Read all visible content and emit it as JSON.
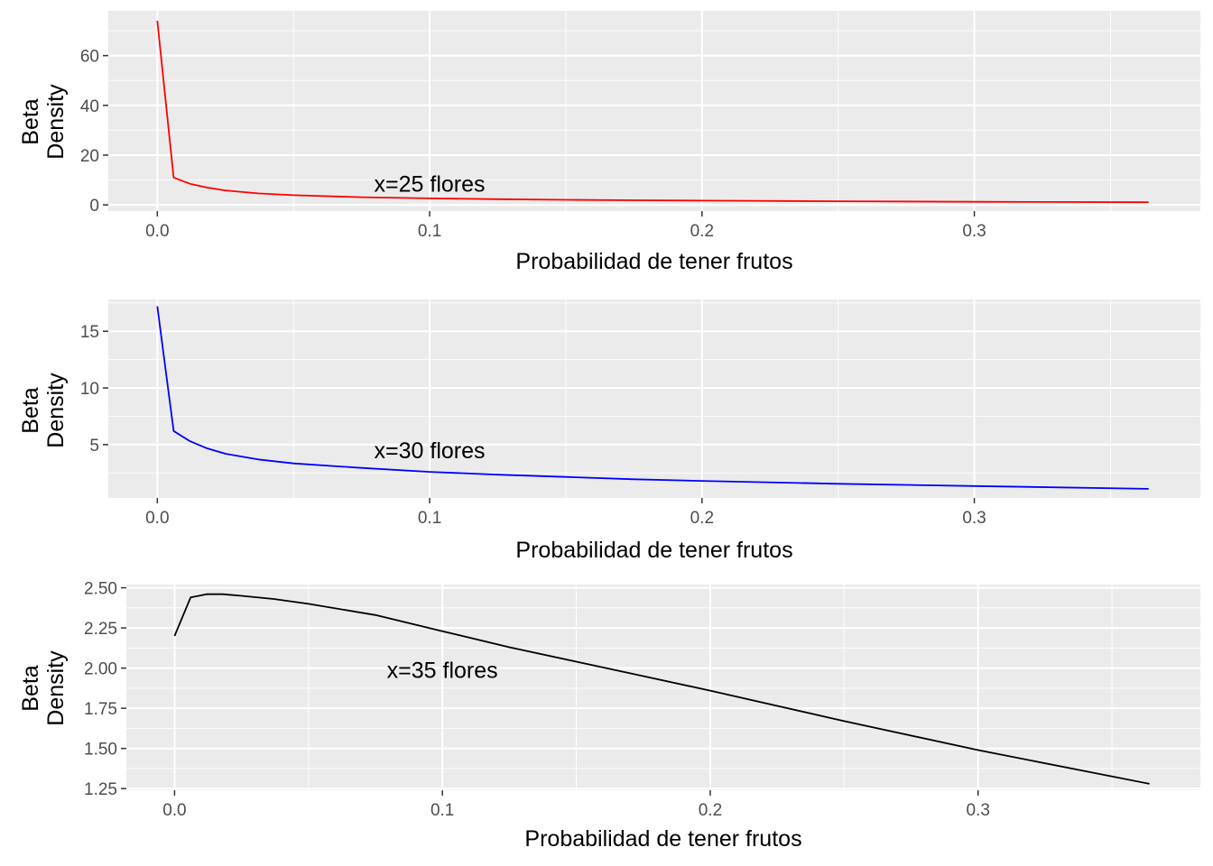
{
  "chart_data": [
    {
      "type": "line",
      "xlabel": "Probabilidad de tener frutos",
      "ylabel_lines": [
        "Beta",
        "Density"
      ],
      "annotation": {
        "text": "x=25 flores",
        "x": 0.1,
        "y": 8.5
      },
      "color": "#FF0000",
      "xlim": [
        -0.018,
        0.383
      ],
      "ylim": [
        -2.5,
        78
      ],
      "x_ticks": [
        0.0,
        0.1,
        0.2,
        0.3
      ],
      "x_tick_labels": [
        "0.0",
        "0.1",
        "0.2",
        "0.3"
      ],
      "y_ticks": [
        0,
        20,
        40,
        60
      ],
      "y_tick_labels": [
        "0",
        "20",
        "40",
        "60"
      ],
      "grid": true,
      "x": [
        0.0,
        0.006,
        0.012,
        0.018,
        0.025,
        0.037,
        0.05,
        0.075,
        0.1,
        0.125,
        0.15,
        0.175,
        0.2,
        0.25,
        0.3,
        0.364
      ],
      "y": [
        74.0,
        11.0,
        8.5,
        7.0,
        5.8,
        4.6,
        3.9,
        3.1,
        2.6,
        2.3,
        2.05,
        1.85,
        1.7,
        1.45,
        1.25,
        1.05
      ]
    },
    {
      "type": "line",
      "xlabel": "Probabilidad de tener frutos",
      "ylabel_lines": [
        "Beta",
        "Density"
      ],
      "annotation": {
        "text": "x=30 flores",
        "x": 0.1,
        "y": 4.5
      },
      "color": "#0000FF",
      "xlim": [
        -0.018,
        0.383
      ],
      "ylim": [
        0.3,
        17.8
      ],
      "x_ticks": [
        0.0,
        0.1,
        0.2,
        0.3
      ],
      "x_tick_labels": [
        "0.0",
        "0.1",
        "0.2",
        "0.3"
      ],
      "y_ticks": [
        5,
        10,
        15
      ],
      "y_tick_labels": [
        "5",
        "10",
        "15"
      ],
      "grid": true,
      "x": [
        0.0,
        0.006,
        0.012,
        0.018,
        0.025,
        0.037,
        0.05,
        0.075,
        0.1,
        0.125,
        0.15,
        0.175,
        0.2,
        0.25,
        0.3,
        0.364
      ],
      "y": [
        17.2,
        6.2,
        5.3,
        4.7,
        4.2,
        3.7,
        3.35,
        2.95,
        2.6,
        2.35,
        2.15,
        1.95,
        1.8,
        1.55,
        1.35,
        1.1
      ]
    },
    {
      "type": "line",
      "xlabel": "Probabilidad de tener frutos",
      "ylabel_lines": [
        "Beta",
        "Density"
      ],
      "annotation": {
        "text": "x=35 flores",
        "x": 0.1,
        "y": 1.99
      },
      "color": "#000000",
      "xlim": [
        -0.018,
        0.383
      ],
      "ylim": [
        1.24,
        2.52
      ],
      "x_ticks": [
        0.0,
        0.1,
        0.2,
        0.3
      ],
      "x_tick_labels": [
        "0.0",
        "0.1",
        "0.2",
        "0.3"
      ],
      "y_ticks": [
        1.25,
        1.5,
        1.75,
        2.0,
        2.25,
        2.5
      ],
      "y_tick_labels": [
        "1.25",
        "1.50",
        "1.75",
        "2.00",
        "2.25",
        "2.50"
      ],
      "grid": true,
      "x": [
        0.0,
        0.006,
        0.012,
        0.018,
        0.025,
        0.037,
        0.05,
        0.075,
        0.1,
        0.125,
        0.15,
        0.175,
        0.2,
        0.25,
        0.3,
        0.364
      ],
      "y": [
        2.2,
        2.44,
        2.46,
        2.46,
        2.45,
        2.43,
        2.4,
        2.33,
        2.23,
        2.13,
        2.04,
        1.95,
        1.86,
        1.67,
        1.49,
        1.28
      ]
    }
  ]
}
